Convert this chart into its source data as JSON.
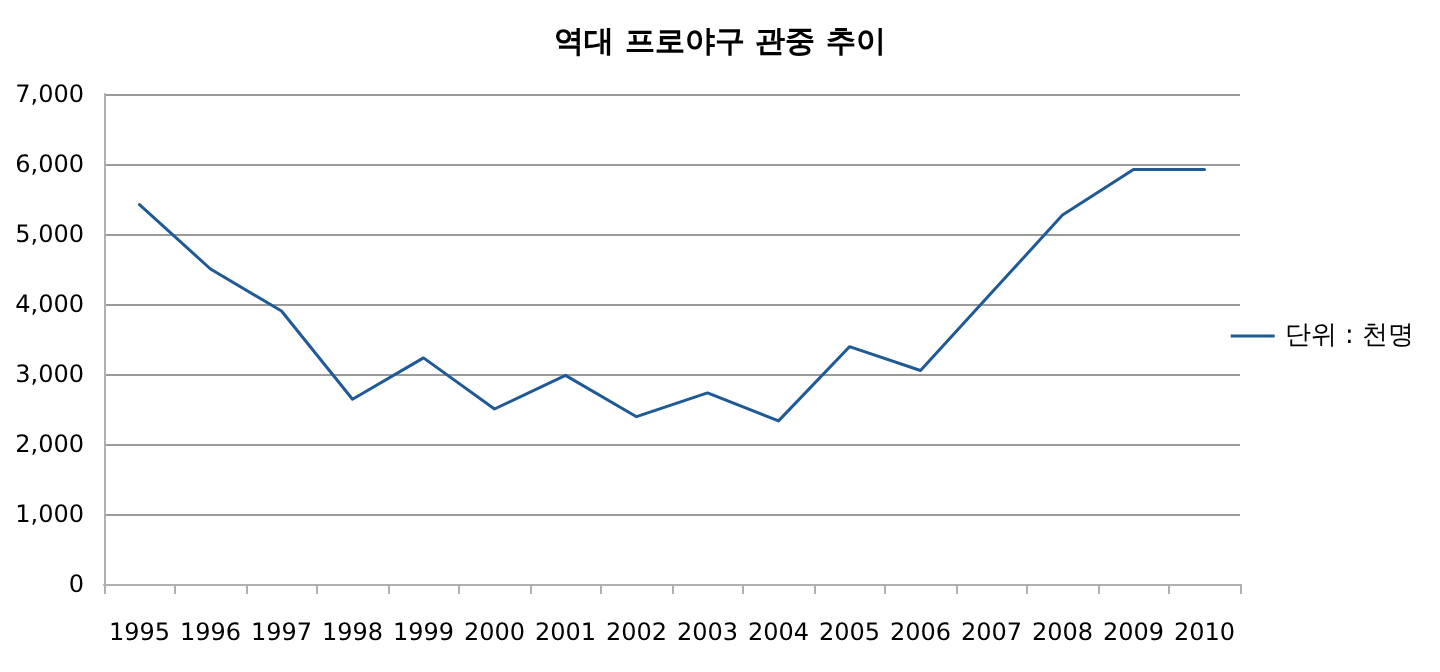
{
  "chart_data": {
    "type": "line",
    "title": "역대 프로야구 관중 추이",
    "categories": [
      "1995",
      "1996",
      "1997",
      "1998",
      "1999",
      "2000",
      "2001",
      "2002",
      "2003",
      "2004",
      "2005",
      "2006",
      "2007",
      "2008",
      "2009",
      "2010"
    ],
    "series": [
      {
        "name": "단위 : 천명",
        "color": "#1f5a96",
        "values": [
          5420,
          4500,
          3900,
          2640,
          3230,
          2500,
          2980,
          2390,
          2730,
          2330,
          3390,
          3050,
          4160,
          5270,
          5920,
          5920
        ]
      }
    ],
    "ylim": [
      0,
      7000
    ],
    "yticks": [
      0,
      {
        "value": 1000,
        "label": "1,000"
      },
      {
        "value": 2000,
        "label": "2,000"
      },
      {
        "value": 3000,
        "label": "3,000"
      },
      {
        "value": 4000,
        "label": "4,000"
      },
      {
        "value": 5000,
        "label": "5,000"
      },
      {
        "value": 6000,
        "label": "6,000"
      },
      {
        "value": 7000,
        "label": "7,000"
      }
    ],
    "grid": "y",
    "legend": "right",
    "marker": "none",
    "line_style": "solid"
  }
}
